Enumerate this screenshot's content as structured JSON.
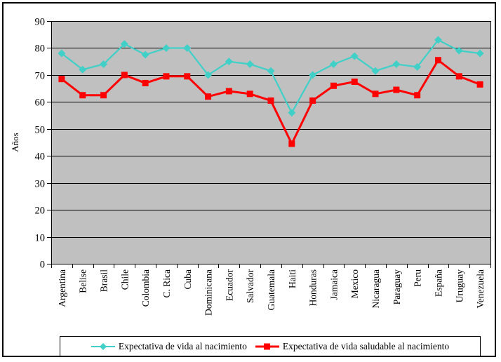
{
  "chart_data": {
    "type": "line",
    "categories": [
      "Argentina",
      "Belise",
      "Brasil",
      "Chile",
      "Colombia",
      "C. Rica",
      "Cuba",
      "Dominicana",
      "Ecuador",
      "Salvador",
      "Guatemala",
      "Haiti",
      "Honduras",
      "Jamaica",
      "Mexico",
      "Nicaragua",
      "Paraguay",
      "Peru",
      "España",
      "Uruguay",
      "Venezuela"
    ],
    "series": [
      {
        "name": "Expectativa de vida al nacimiento",
        "color": "#40D0C8",
        "marker": "diamond",
        "values": [
          78,
          72,
          74,
          81.5,
          77.5,
          80,
          80,
          70,
          75,
          74,
          71.5,
          56,
          70,
          74,
          77,
          71.5,
          74,
          73,
          83,
          79,
          78
        ]
      },
      {
        "name": "Expectativa de vida saludable al nacimiento",
        "color": "#FF0000",
        "marker": "square",
        "values": [
          68.5,
          62.5,
          62.5,
          70,
          67,
          69.5,
          69.5,
          62,
          64,
          63,
          60.5,
          44.5,
          60.5,
          66,
          67.5,
          63,
          64.5,
          62.5,
          75.5,
          69.5,
          66.5
        ]
      }
    ],
    "title": "",
    "xlabel": "",
    "ylabel": "Años",
    "ylim": [
      0,
      90
    ],
    "ytick_step": 10,
    "ytick_labels": [
      "0",
      "10",
      "20",
      "30",
      "40",
      "50",
      "60",
      "70",
      "80",
      "90"
    ],
    "grid": true,
    "plot_bg_color": "#C0C0C0",
    "gridline_color": "#000000",
    "legend_position": "bottom"
  }
}
